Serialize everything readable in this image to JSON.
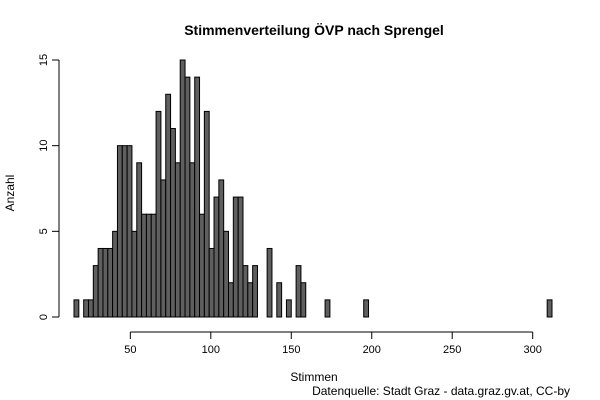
{
  "chart_data": {
    "type": "bar",
    "title": "Stimmenverteilung ÖVP nach Sprengel",
    "xlabel": "Stimmen",
    "ylabel": "Anzahl",
    "source_note": "Datenquelle: Stadt Graz - data.graz.gv.at, CC-by",
    "bin_width": 3,
    "x_start": 15,
    "xlim": [
      15,
      312
    ],
    "ylim": [
      0,
      15
    ],
    "x_ticks": [
      50,
      100,
      150,
      200,
      250,
      300
    ],
    "y_ticks": [
      0,
      5,
      10,
      15
    ],
    "x_tick_labels": [
      "50",
      "100",
      "150",
      "200",
      "250",
      "300"
    ],
    "y_tick_labels": [
      "0",
      "5",
      "10",
      "15"
    ],
    "counts": [
      1,
      0,
      1,
      1,
      3,
      4,
      4,
      4,
      5,
      10,
      10,
      10,
      5,
      9,
      6,
      6,
      6,
      12,
      8,
      13,
      11,
      9,
      15,
      14,
      9,
      14,
      6,
      12,
      4,
      7,
      8,
      5,
      2,
      7,
      7,
      3,
      2,
      3,
      0,
      0,
      4,
      0,
      2,
      0,
      1,
      0,
      3,
      2,
      0,
      0,
      0,
      0,
      1,
      0,
      0,
      0,
      0,
      0,
      0,
      0,
      1,
      0,
      0,
      0,
      0,
      0,
      0,
      0,
      0,
      0,
      0,
      0,
      0,
      0,
      0,
      0,
      0,
      0,
      0,
      0,
      0,
      0,
      0,
      0,
      0,
      0,
      0,
      0,
      0,
      0,
      0,
      0,
      0,
      0,
      0,
      0,
      0,
      0,
      1
    ],
    "notes": "Histogram with bins of width 3 starting at 15; counts estimated from bar heights."
  }
}
